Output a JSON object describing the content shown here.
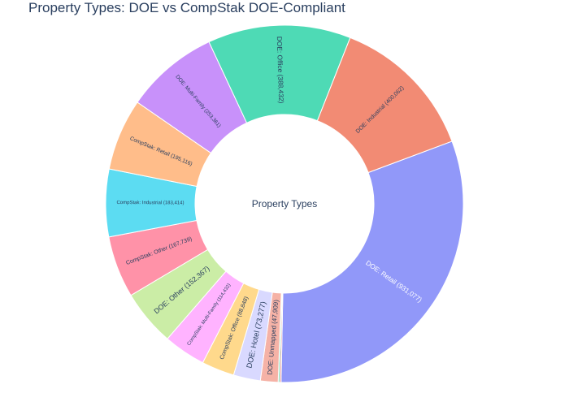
{
  "chart_data": {
    "type": "pie",
    "hole": true,
    "title": "Property Types: DOE vs CompStak DOE-Compliant",
    "center_label": "Property Types",
    "direction": "clockwise",
    "slices": [
      {
        "label": "DOE: Retail",
        "value": 931077,
        "text": "DOE: Retail (931,077)",
        "color": "#9198f9",
        "text_color": "#ffffff"
      },
      {
        "label": "unlabeled",
        "value": 4000,
        "text": "",
        "color": "#e07a7a",
        "text_color": "#2a3f5f"
      },
      {
        "label": "unlabeled",
        "value": 4000,
        "text": "",
        "color": "#5cd6a0",
        "text_color": "#2a3f5f"
      },
      {
        "label": "DOE: Unmapped",
        "value": 47909,
        "text": "DOE: Unmapped (47,909)",
        "color": "#f5b2a6",
        "text_color": "#2a3f5f"
      },
      {
        "label": "DOE: Hotel",
        "value": 73277,
        "text": "DOE: Hotel (73,277)",
        "color": "#d9d9ff",
        "text_color": "#2a3f5f"
      },
      {
        "label": "CompStak: Office",
        "value": 88848,
        "text": "CompStak: Office (88,848)",
        "color": "#ffd98c",
        "text_color": "#2a3f5f"
      },
      {
        "label": "CompStak: Multi-Family",
        "value": 114432,
        "text": "CompStak: Multi-Family (114,432)",
        "color": "#ffb3ff",
        "text_color": "#2a3f5f"
      },
      {
        "label": "DOE: Other",
        "value": 152367,
        "text": "DOE: Other (152,367)",
        "color": "#cbeda6",
        "text_color": "#2a3f5f"
      },
      {
        "label": "CompStak: Other",
        "value": 167739,
        "text": "CompStak: Other (167,739)",
        "color": "#ff92a8",
        "text_color": "#2a3f5f"
      },
      {
        "label": "CompStak: Industrial",
        "value": 183414,
        "text": "CompStak: Industrial (183,414)",
        "color": "#5cdcf2",
        "text_color": "#2a3f5f"
      },
      {
        "label": "CompStak: Retail",
        "value": 195116,
        "text": "CompStak: Retail (195,116)",
        "color": "#ffbd8a",
        "text_color": "#2a3f5f"
      },
      {
        "label": "DOE: Multi-Family",
        "value": 253361,
        "text": "DOE: Multi-Family (253,361)",
        "color": "#c891fa",
        "text_color": "#2a3f5f"
      },
      {
        "label": "DOE: Office",
        "value": 388432,
        "text": "DOE: Office (388,432)",
        "color": "#4edab5",
        "text_color": "#2a3f5f"
      },
      {
        "label": "DOE: Industrial",
        "value": 400062,
        "text": "DOE: Industrial (400,062)",
        "color": "#f28b74",
        "text_color": "#2a3f5f"
      }
    ]
  }
}
